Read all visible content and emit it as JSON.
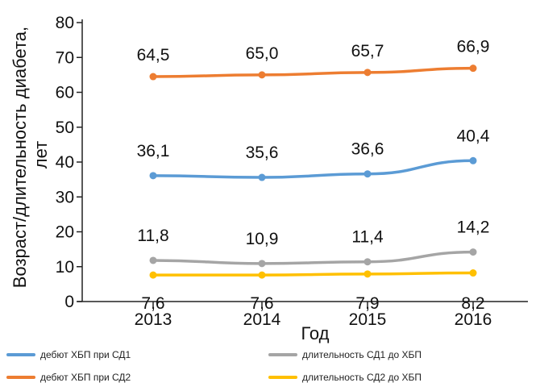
{
  "chart_data": {
    "type": "line",
    "x": [
      "2013",
      "2014",
      "2015",
      "2016"
    ],
    "xlabel": "Год",
    "ylabel": [
      "Возраст/длительность диабета,",
      "лет"
    ],
    "ylim": [
      0,
      80
    ],
    "yticks": [
      "0",
      "10",
      "20",
      "30",
      "40",
      "50",
      "60",
      "70",
      "80"
    ],
    "grid": false,
    "legend_position": "bottom",
    "series": [
      {
        "name": "дебют ХБП при СД1",
        "color": "#5b9bd5",
        "values": [
          36.1,
          35.6,
          36.6,
          40.4
        ],
        "labels": [
          "36,1",
          "35,6",
          "36,6",
          "40,4"
        ]
      },
      {
        "name": "дебют ХБП при СД2",
        "color": "#ed7d31",
        "values": [
          64.5,
          65.0,
          65.7,
          66.9
        ],
        "labels": [
          "64,5",
          "65,0",
          "65,7",
          "66,9"
        ]
      },
      {
        "name": "длительность СД1 до ХБП",
        "color": "#a5a5a5",
        "values": [
          11.8,
          10.9,
          11.4,
          14.2
        ],
        "labels": [
          "11,8",
          "10,9",
          "11,4",
          "14,2"
        ]
      },
      {
        "name": "длительность СД2 до ХБП",
        "color": "#ffc000",
        "values": [
          7.6,
          7.6,
          7.9,
          8.2
        ],
        "labels": [
          "7,6",
          "7,6",
          "7,9",
          "8,2"
        ]
      }
    ]
  }
}
